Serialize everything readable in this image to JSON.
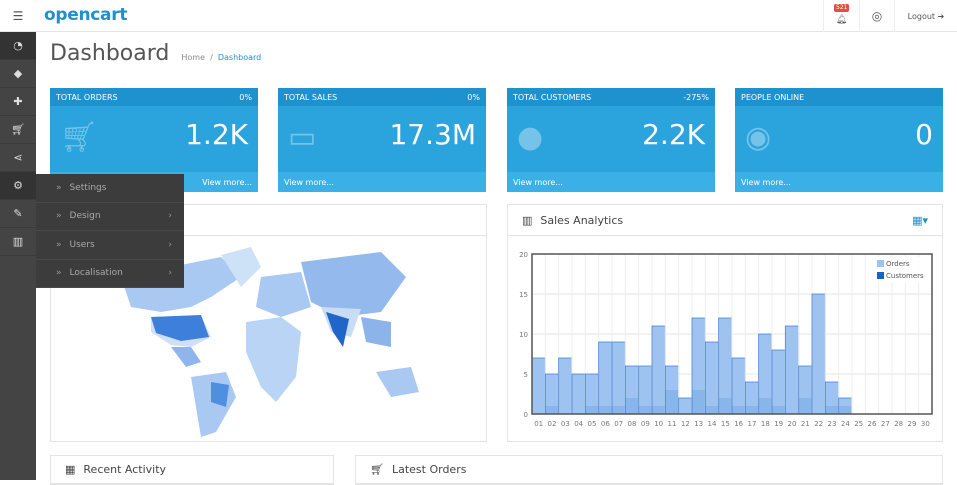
{
  "header": {
    "logo": "opencart",
    "notification_count": "521",
    "logout": "Logout"
  },
  "sidebar": {
    "icons": [
      "dashboard-icon",
      "tags-icon",
      "puzzle-icon",
      "shopping-cart-icon",
      "share-icon",
      "gear-icon",
      "wrench-icon",
      "bar-chart-icon"
    ]
  },
  "flyout": {
    "items": [
      {
        "label": "Settings",
        "submenu": false
      },
      {
        "label": "Design",
        "submenu": true
      },
      {
        "label": "Users",
        "submenu": true
      },
      {
        "label": "Localisation",
        "submenu": true
      }
    ]
  },
  "page": {
    "title": "Dashboard",
    "breadcrumb": [
      "Home",
      "Dashboard"
    ]
  },
  "tiles": [
    {
      "title": "TOTAL ORDERS",
      "change": "0%",
      "value": "1.2K",
      "footer": "View more...",
      "icon": "shopping-cart-icon"
    },
    {
      "title": "TOTAL SALES",
      "change": "0%",
      "value": "17.3M",
      "footer": "View more...",
      "icon": "credit-card-icon"
    },
    {
      "title": "TOTAL CUSTOMERS",
      "change": "-275%",
      "value": "2.2K",
      "footer": "View more...",
      "icon": "user-icon"
    },
    {
      "title": "PEOPLE ONLINE",
      "change": "",
      "value": "0",
      "footer": "View more...",
      "icon": "eye-icon"
    }
  ],
  "panels": {
    "sales": "Sales Analytics",
    "activity": "Recent Activity",
    "orders": "Latest Orders"
  },
  "colors": {
    "primary": "#1e91cf",
    "tile": "#2ba3dc",
    "sidebar": "#444444"
  },
  "chart_data": {
    "type": "bar",
    "categories": [
      "01",
      "02",
      "03",
      "04",
      "05",
      "06",
      "07",
      "08",
      "09",
      "10",
      "11",
      "12",
      "13",
      "14",
      "15",
      "16",
      "17",
      "18",
      "19",
      "20",
      "21",
      "22",
      "23",
      "24",
      "25",
      "26",
      "27",
      "28",
      "29",
      "30"
    ],
    "series": [
      {
        "name": "Orders",
        "color": "#9ec3f0",
        "values": [
          7,
          5,
          7,
          5,
          5,
          9,
          9,
          6,
          6,
          11,
          6,
          2,
          12,
          9,
          12,
          7,
          4,
          10,
          8,
          11,
          6,
          15,
          4,
          2,
          0,
          0,
          0,
          0,
          0,
          0
        ]
      },
      {
        "name": "Customers",
        "color": "#1065c8",
        "values": [
          0,
          1,
          0,
          0,
          1,
          1,
          1,
          2,
          1,
          1,
          3,
          0,
          3,
          1,
          2,
          1,
          1,
          2,
          1,
          0,
          2,
          0,
          1,
          1,
          0,
          0,
          0,
          0,
          0,
          0
        ]
      }
    ],
    "yticks": [
      0,
      5,
      10,
      15,
      20
    ],
    "ylim": [
      0,
      20
    ],
    "grid": true,
    "legend": "top-right"
  }
}
